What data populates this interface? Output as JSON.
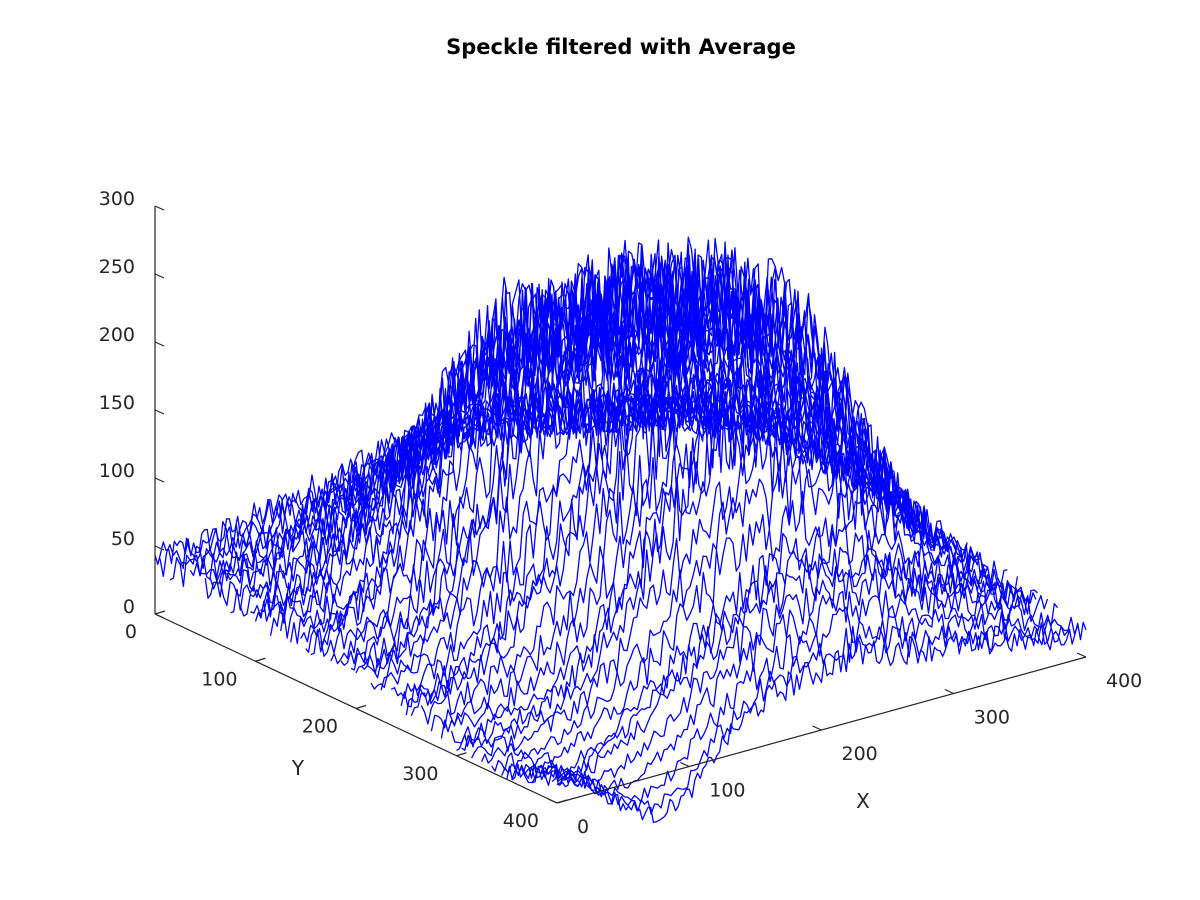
{
  "chart_data": {
    "type": "line",
    "plot_kind": "3d-mesh-lines",
    "title": "Speckle filtered with Average",
    "xlabel": "X",
    "ylabel": "Y",
    "zlabel": "",
    "xlim": [
      0,
      400
    ],
    "ylim": [
      0,
      400
    ],
    "zlim": [
      0,
      300
    ],
    "x_ticks": [
      "0",
      "100",
      "200",
      "300",
      "400"
    ],
    "y_ticks": [
      "0",
      "100",
      "200",
      "300",
      "400"
    ],
    "z_ticks": [
      "0",
      "50",
      "100",
      "150",
      "200",
      "250",
      "300"
    ],
    "series_color": "#0000ff",
    "grid": false,
    "rows": [
      {
        "y": 0,
        "x": [
          0,
          25,
          50,
          75,
          100,
          125,
          150,
          175,
          200,
          225,
          250,
          275,
          300,
          325,
          350,
          375,
          400
        ],
        "z": [
          40,
          42,
          45,
          50,
          55,
          60,
          65,
          70,
          72,
          74,
          70,
          66,
          62,
          58,
          55,
          52,
          48
        ]
      },
      {
        "y": 50,
        "x": [
          0,
          25,
          50,
          75,
          100,
          125,
          150,
          175,
          200,
          225,
          250,
          275,
          300,
          325,
          350,
          375,
          400
        ],
        "z": [
          38,
          42,
          48,
          58,
          66,
          75,
          85,
          95,
          100,
          105,
          100,
          92,
          85,
          78,
          70,
          62,
          55
        ]
      },
      {
        "y": 100,
        "x": [
          0,
          25,
          50,
          75,
          100,
          125,
          150,
          175,
          200,
          225,
          250,
          275,
          300,
          325,
          350,
          375,
          400
        ],
        "z": [
          35,
          42,
          55,
          75,
          95,
          130,
          160,
          170,
          175,
          180,
          175,
          160,
          140,
          120,
          100,
          80,
          60
        ]
      },
      {
        "y": 150,
        "x": [
          0,
          25,
          50,
          75,
          100,
          125,
          150,
          175,
          200,
          225,
          250,
          275,
          300,
          325,
          350,
          375,
          400
        ],
        "z": [
          30,
          40,
          55,
          90,
          130,
          200,
          230,
          220,
          215,
          230,
          220,
          210,
          190,
          150,
          110,
          80,
          55
        ]
      },
      {
        "y": 200,
        "x": [
          0,
          25,
          50,
          75,
          100,
          125,
          150,
          175,
          200,
          225,
          250,
          275,
          300,
          325,
          350,
          375,
          400
        ],
        "z": [
          25,
          35,
          50,
          85,
          120,
          170,
          210,
          230,
          240,
          250,
          240,
          225,
          200,
          160,
          115,
          75,
          50
        ]
      },
      {
        "y": 250,
        "x": [
          0,
          25,
          50,
          75,
          100,
          125,
          150,
          175,
          200,
          225,
          250,
          275,
          300,
          325,
          350,
          375,
          400
        ],
        "z": [
          20,
          25,
          35,
          55,
          80,
          120,
          160,
          190,
          220,
          240,
          255,
          245,
          220,
          170,
          110,
          65,
          40
        ]
      },
      {
        "y": 300,
        "x": [
          0,
          25,
          50,
          75,
          100,
          125,
          150,
          175,
          200,
          225,
          250,
          275,
          300,
          325,
          350,
          375,
          400
        ],
        "z": [
          10,
          10,
          15,
          25,
          45,
          80,
          120,
          160,
          180,
          190,
          185,
          170,
          140,
          110,
          75,
          50,
          30
        ]
      },
      {
        "y": 350,
        "x": [
          0,
          25,
          50,
          75,
          100,
          125,
          150,
          175,
          200,
          225,
          250,
          275,
          300,
          325,
          350,
          375,
          400
        ],
        "z": [
          5,
          0,
          -10,
          5,
          20,
          40,
          60,
          80,
          90,
          95,
          90,
          85,
          70,
          55,
          45,
          35,
          25
        ]
      },
      {
        "y": 400,
        "x": [
          0,
          25,
          50,
          75,
          100,
          125,
          150,
          175,
          200,
          225,
          250,
          275,
          300,
          325,
          350,
          375,
          400
        ],
        "z": [
          20,
          10,
          -15,
          -30,
          -20,
          10,
          30,
          40,
          45,
          50,
          45,
          40,
          35,
          30,
          25,
          20,
          20
        ]
      }
    ]
  }
}
